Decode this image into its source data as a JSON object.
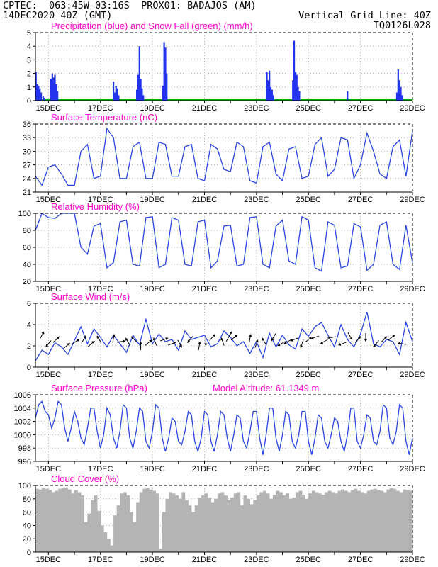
{
  "header": {
    "line1_left": "CPTEC:  063:45W-03:16S  PROX01: BADAJOS (AM)",
    "line2_left": "14DEC2020 40Z (GMT)",
    "line2_right": "Vertical Grid Line: 40Z",
    "line3_right": "TQ0126L028"
  },
  "colors": {
    "header_text": "#e8862a",
    "title_text": "#ff00cc",
    "precip": "#2233ee",
    "snow": "#00b000",
    "line": "#2a46e0",
    "cloud": "#b4b4b4",
    "grid": "#999999"
  },
  "chart_data": [
    {
      "type": "bar",
      "title": "Precipitation (blue) and Snow Fall (green) (mm/h)",
      "ylim": [
        0,
        5
      ],
      "yticks": [
        "0",
        "1",
        "2",
        "3",
        "4",
        "5"
      ],
      "xticks": [
        "15DEC",
        "17DEC",
        "19DEC",
        "21DEC",
        "23DEC",
        "25DEC",
        "27DEC",
        "29DEC"
      ],
      "x_unit": "day_offset",
      "series": [
        {
          "name": "Precipitation",
          "x": [
            0.02,
            0.07,
            0.12,
            0.17,
            0.22,
            0.3,
            0.35,
            0.6,
            0.65,
            0.7,
            0.75,
            0.8,
            0.85,
            3.0,
            3.05,
            3.1,
            3.15,
            3.2,
            3.9,
            3.95,
            4.0,
            4.05,
            4.1,
            4.15,
            4.9,
            4.95,
            5.0,
            5.05,
            8.9,
            8.95,
            9.0,
            9.05,
            9.1,
            9.15,
            9.9,
            9.95,
            10.0,
            10.05,
            10.1,
            10.15,
            12.0,
            13.9,
            13.95,
            14.0,
            14.05,
            14.1
          ],
          "values": [
            2.1,
            1.2,
            1.1,
            0.9,
            0.6,
            0.3,
            0.2,
            1.6,
            2.0,
            1.7,
            1.9,
            1.2,
            0.7,
            1.4,
            0.6,
            1.1,
            0.9,
            0.4,
            0.8,
            1.9,
            4.0,
            1.6,
            0.9,
            0.4,
            1.1,
            4.3,
            3.9,
            2.0,
            2.1,
            1.5,
            2.2,
            1.0,
            0.8,
            0.4,
            1.5,
            4.4,
            2.1,
            1.9,
            1.0,
            0.7,
            0.7,
            0.6,
            2.3,
            1.5,
            1.0,
            0.4
          ]
        },
        {
          "name": "Snow Fall",
          "values": [
            0
          ]
        }
      ]
    },
    {
      "type": "line",
      "title": "Surface Temperature (nC)",
      "ylim": [
        21,
        36
      ],
      "yticks": [
        "21",
        "24",
        "27",
        "30",
        "33",
        "36"
      ],
      "xticks": [
        "15DEC",
        "17DEC",
        "19DEC",
        "21DEC",
        "23DEC",
        "25DEC",
        "27DEC",
        "29DEC"
      ],
      "x": [
        0,
        0.25,
        0.5,
        0.75,
        1,
        1.25,
        1.5,
        1.75,
        2,
        2.25,
        2.5,
        2.75,
        3,
        3.25,
        3.5,
        3.75,
        4,
        4.25,
        4.5,
        4.75,
        5,
        5.25,
        5.5,
        5.75,
        6,
        6.25,
        6.5,
        6.75,
        7,
        7.25,
        7.5,
        7.75,
        8,
        8.25,
        8.5,
        8.75,
        9,
        9.25,
        9.5,
        9.75,
        10,
        10.25,
        10.5,
        10.75,
        11,
        11.25,
        11.5,
        11.75,
        12,
        12.25,
        12.5,
        12.75,
        13,
        13.25,
        13.5,
        13.75,
        14,
        14.25,
        14.5
      ],
      "values": [
        24.5,
        22.5,
        26.5,
        27,
        25,
        22.5,
        22.5,
        30,
        31.5,
        24,
        24.5,
        35,
        33,
        24,
        24,
        31,
        32,
        24,
        24,
        32,
        31.5,
        24.5,
        24.5,
        31,
        31.5,
        24,
        23.5,
        31.5,
        30.5,
        26,
        25.5,
        32,
        31,
        23.5,
        23,
        31,
        32,
        25,
        23.5,
        30.5,
        31,
        24,
        24.5,
        31.5,
        33,
        24.5,
        26,
        33,
        32.5,
        24,
        27,
        34,
        30,
        25,
        24,
        31,
        32.5,
        24.5,
        34.5
      ]
    },
    {
      "type": "line",
      "title": "Relative Humidity (%)",
      "ylim": [
        20,
        100
      ],
      "yticks": [
        "20",
        "40",
        "60",
        "80",
        "100"
      ],
      "xticks": [
        "15DEC",
        "17DEC",
        "19DEC",
        "21DEC",
        "23DEC",
        "25DEC",
        "27DEC",
        "29DEC"
      ],
      "x": [
        0,
        0.25,
        0.5,
        0.75,
        1,
        1.25,
        1.5,
        1.75,
        2,
        2.25,
        2.5,
        2.75,
        3,
        3.25,
        3.5,
        3.75,
        4,
        4.25,
        4.5,
        4.75,
        5,
        5.25,
        5.5,
        5.75,
        6,
        6.25,
        6.5,
        6.75,
        7,
        7.25,
        7.5,
        7.75,
        8,
        8.25,
        8.5,
        8.75,
        9,
        9.25,
        9.5,
        9.75,
        10,
        10.25,
        10.5,
        10.75,
        11,
        11.25,
        11.5,
        11.75,
        12,
        12.25,
        12.5,
        12.75,
        13,
        13.25,
        13.5,
        13.75,
        14,
        14.25,
        14.5
      ],
      "values": [
        80,
        100,
        95,
        94,
        100,
        100,
        100,
        60,
        52,
        85,
        88,
        36,
        42,
        90,
        92,
        40,
        38,
        95,
        96,
        36,
        40,
        95,
        92,
        40,
        38,
        90,
        92,
        36,
        44,
        85,
        86,
        38,
        40,
        95,
        96,
        40,
        36,
        85,
        92,
        44,
        40,
        96,
        92,
        36,
        32,
        90,
        86,
        36,
        38,
        88,
        84,
        33,
        40,
        86,
        90,
        40,
        34,
        86,
        42
      ]
    },
    {
      "type": "line",
      "title": "Surface Wind (m/s)",
      "ylim": [
        0,
        6
      ],
      "yticks": [
        "0",
        "2",
        "4",
        "6"
      ],
      "xticks": [
        "15DEC",
        "17DEC",
        "19DEC",
        "21DEC",
        "23DEC",
        "25DEC",
        "27DEC",
        "29DEC"
      ],
      "x": [
        0,
        0.25,
        0.5,
        0.75,
        1,
        1.25,
        1.5,
        1.75,
        2,
        2.25,
        2.5,
        2.75,
        3,
        3.25,
        3.5,
        3.75,
        4,
        4.25,
        4.5,
        4.75,
        5,
        5.25,
        5.5,
        5.75,
        6,
        6.25,
        6.5,
        6.75,
        7,
        7.25,
        7.5,
        7.75,
        8,
        8.25,
        8.5,
        8.75,
        9,
        9.25,
        9.5,
        9.75,
        10,
        10.25,
        10.5,
        10.75,
        11,
        11.25,
        11.5,
        11.75,
        12,
        12.25,
        12.5,
        12.75,
        13,
        13.25,
        13.5,
        13.75,
        14,
        14.25,
        14.5
      ],
      "values": [
        0.6,
        1.6,
        1.2,
        2.3,
        1.9,
        1.2,
        2.5,
        3.8,
        2.2,
        3.6,
        2.8,
        1.9,
        3.0,
        2.2,
        1.4,
        3.0,
        2.1,
        4.5,
        2.2,
        3.1,
        2.4,
        2.6,
        1.6,
        3.4,
        2.6,
        2.8,
        3.0,
        1.9,
        2.2,
        3.4,
        2.8,
        2.0,
        2.4,
        1.3,
        2.4,
        0.9,
        3.2,
        1.9,
        3.0,
        2.1,
        1.7,
        3.6,
        2.9,
        3.8,
        4.2,
        3.0,
        1.9,
        4.0,
        2.6,
        1.9,
        3.1,
        5.2,
        2.2,
        1.9,
        2.6,
        2.4,
        1.2,
        4.2,
        2.4
      ],
      "arrows": {
        "x": [
          0.25,
          0.5,
          0.8,
          1.2,
          1.55,
          1.85,
          2.15,
          2.45,
          3.0,
          3.3,
          3.55,
          3.8,
          4.05,
          4.35,
          4.6,
          4.95,
          5.25,
          5.55,
          5.95,
          6.3,
          6.55,
          6.8,
          7.2,
          7.45,
          7.65,
          8.25,
          8.5,
          8.8,
          9.15,
          9.45,
          9.7,
          9.95,
          10.25,
          10.5,
          10.75,
          11.1,
          11.4,
          11.8,
          12.1,
          12.4,
          12.7,
          13.1,
          13.4,
          13.7,
          14.1
        ],
        "y": [
          3.0,
          2.2,
          2.6,
          2.0,
          2.4,
          2.6,
          2.2,
          2.6,
          2.7,
          2.4,
          2.4,
          2.6,
          2.0,
          2.3,
          2.4,
          2.6,
          2.2,
          2.2,
          2.6,
          2.0,
          2.4,
          2.8,
          2.4,
          2.9,
          2.8,
          2.7,
          2.2,
          2.4,
          2.8,
          2.2,
          2.4,
          2.6,
          2.2,
          2.6,
          2.8,
          2.4,
          2.8,
          2.2,
          2.9,
          2.6,
          2.8,
          2.2,
          2.6,
          2.8,
          2.2
        ],
        "dir_deg": [
          60,
          230,
          45,
          40,
          35,
          60,
          40,
          120,
          80,
          10,
          120,
          135,
          90,
          40,
          110,
          20,
          20,
          300,
          230,
          80,
          270,
          50,
          110,
          60,
          40,
          80,
          70,
          120,
          240,
          210,
          210,
          200,
          250,
          40,
          200,
          210,
          190,
          200,
          300,
          50,
          270,
          230,
          45,
          40,
          170
        ],
        "length": [
          1.0,
          1.0,
          1.0,
          1.0,
          1.0,
          1.0,
          1.0,
          1.0,
          1.0,
          1.0,
          1.0,
          1.0,
          1.0,
          1.0,
          1.0,
          1.0,
          1.0,
          1.0,
          1.0,
          1.0,
          1.0,
          1.0,
          1.0,
          1.4,
          1.0,
          1.0,
          1.0,
          1.0,
          1.0,
          1.0,
          1.0,
          1.0,
          1.0,
          1.0,
          1.0,
          1.0,
          1.0,
          1.0,
          1.0,
          1.0,
          1.0,
          1.0,
          1.0,
          1.0,
          1.0
        ]
      }
    },
    {
      "type": "line",
      "title": "Surface Pressure (hPa)",
      "annotation": "Model Altitude: 61.1349 m",
      "ylim": [
        996,
        1006
      ],
      "yticks": [
        "996",
        "998",
        "1000",
        "1002",
        "1004",
        "1006"
      ],
      "xticks": [
        "15DEC",
        "17DEC",
        "19DEC",
        "21DEC",
        "23DEC",
        "25DEC",
        "27DEC",
        "29DEC"
      ],
      "x": [
        0,
        0.125,
        0.25,
        0.375,
        0.5,
        0.625,
        0.75,
        0.875,
        1,
        1.125,
        1.25,
        1.375,
        1.5,
        1.625,
        1.75,
        1.875,
        2,
        2.125,
        2.25,
        2.375,
        2.5,
        2.625,
        2.75,
        2.875,
        3,
        3.125,
        3.25,
        3.375,
        3.5,
        3.625,
        3.75,
        3.875,
        4,
        4.125,
        4.25,
        4.375,
        4.5,
        4.625,
        4.75,
        4.875,
        5,
        5.125,
        5.25,
        5.375,
        5.5,
        5.625,
        5.75,
        5.875,
        6,
        6.125,
        6.25,
        6.375,
        6.5,
        6.625,
        6.75,
        6.875,
        7,
        7.125,
        7.25,
        7.375,
        7.5,
        7.625,
        7.75,
        7.875,
        8,
        8.125,
        8.25,
        8.375,
        8.5,
        8.625,
        8.75,
        8.875,
        9,
        9.125,
        9.25,
        9.375,
        9.5,
        9.625,
        9.75,
        9.875,
        10,
        10.125,
        10.25,
        10.375,
        10.5,
        10.625,
        10.75,
        10.875,
        11,
        11.125,
        11.25,
        11.375,
        11.5,
        11.625,
        11.75,
        11.875,
        12,
        12.125,
        12.25,
        12.375,
        12.5,
        12.625,
        12.75,
        12.875,
        13,
        13.125,
        13.25,
        13.375,
        13.5,
        13.625,
        13.75,
        13.875,
        14,
        14.125,
        14.25,
        14.375,
        14.5
      ],
      "values": [
        1002.5,
        1004.5,
        1005,
        1003.5,
        1003,
        1001,
        1002.5,
        1005,
        1004.5,
        1001,
        999,
        1001,
        1003.5,
        1002,
        999.5,
        998.5,
        1001,
        1004,
        1004,
        1000.5,
        998,
        1000,
        1004,
        1003,
        999.5,
        998,
        1000.5,
        1004.5,
        1004,
        999.5,
        998,
        1000.5,
        1004,
        1003.5,
        999,
        998,
        1000.5,
        1004.5,
        1004,
        999.5,
        997.5,
        999.5,
        1002.5,
        1002,
        999,
        998.5,
        1000.5,
        1003.5,
        1003,
        999,
        997.5,
        999.5,
        1003.5,
        1003,
        999,
        997.5,
        1000,
        1003.5,
        1003,
        999.5,
        997.5,
        1000,
        1003,
        1002.5,
        999,
        998,
        1000.5,
        1003.5,
        1003.5,
        999.5,
        997,
        1000,
        1004,
        1004,
        999.5,
        997.5,
        1000,
        1003.5,
        1003,
        999,
        998,
        1000,
        1003.5,
        1003.5,
        999,
        997,
        999.5,
        1003,
        1002.5,
        999,
        998,
        1000,
        1002.5,
        1002,
        999,
        997.5,
        1000,
        1004,
        1004,
        999,
        998,
        1000,
        1003,
        1002.5,
        999,
        998.5,
        1000.5,
        1004.5,
        1004,
        999.5,
        998.5,
        1000.5,
        1004.5,
        1004,
        999,
        997,
        999.5
      ]
    },
    {
      "type": "bar",
      "title": "Cloud Cover (%)",
      "ylim": [
        0,
        100
      ],
      "yticks": [
        "0",
        "20",
        "40",
        "60",
        "80",
        "100"
      ],
      "xticks": [
        "15DEC",
        "17DEC",
        "19DEC",
        "21DEC",
        "23DEC",
        "25DEC",
        "27DEC",
        "29DEC"
      ],
      "series": [
        {
          "name": "Cloud Cover",
          "values": [
            95,
            94,
            96,
            95,
            93,
            90,
            92,
            95,
            96,
            97,
            94,
            88,
            93,
            90,
            85,
            45,
            58,
            78,
            85,
            62,
            40,
            30,
            20,
            10,
            55,
            70,
            88,
            90,
            85,
            60,
            45,
            75,
            90,
            95,
            96,
            94,
            92,
            88,
            5,
            60,
            80,
            90,
            88,
            85,
            80,
            90,
            78,
            70,
            60,
            70,
            82,
            85,
            88,
            82,
            75,
            80,
            88,
            90,
            85,
            78,
            82,
            88,
            90,
            70,
            85,
            80,
            72,
            78,
            85,
            90,
            92,
            88,
            80,
            86,
            92,
            90,
            85,
            88,
            80,
            82,
            90,
            92,
            86,
            80,
            88,
            92,
            90,
            88,
            86,
            90,
            92,
            90,
            88,
            92,
            94,
            92,
            90,
            93,
            95,
            92,
            90,
            88,
            92,
            94,
            95,
            93,
            92,
            90,
            94,
            96,
            95,
            92,
            90,
            94,
            93,
            92
          ]
        }
      ]
    }
  ]
}
